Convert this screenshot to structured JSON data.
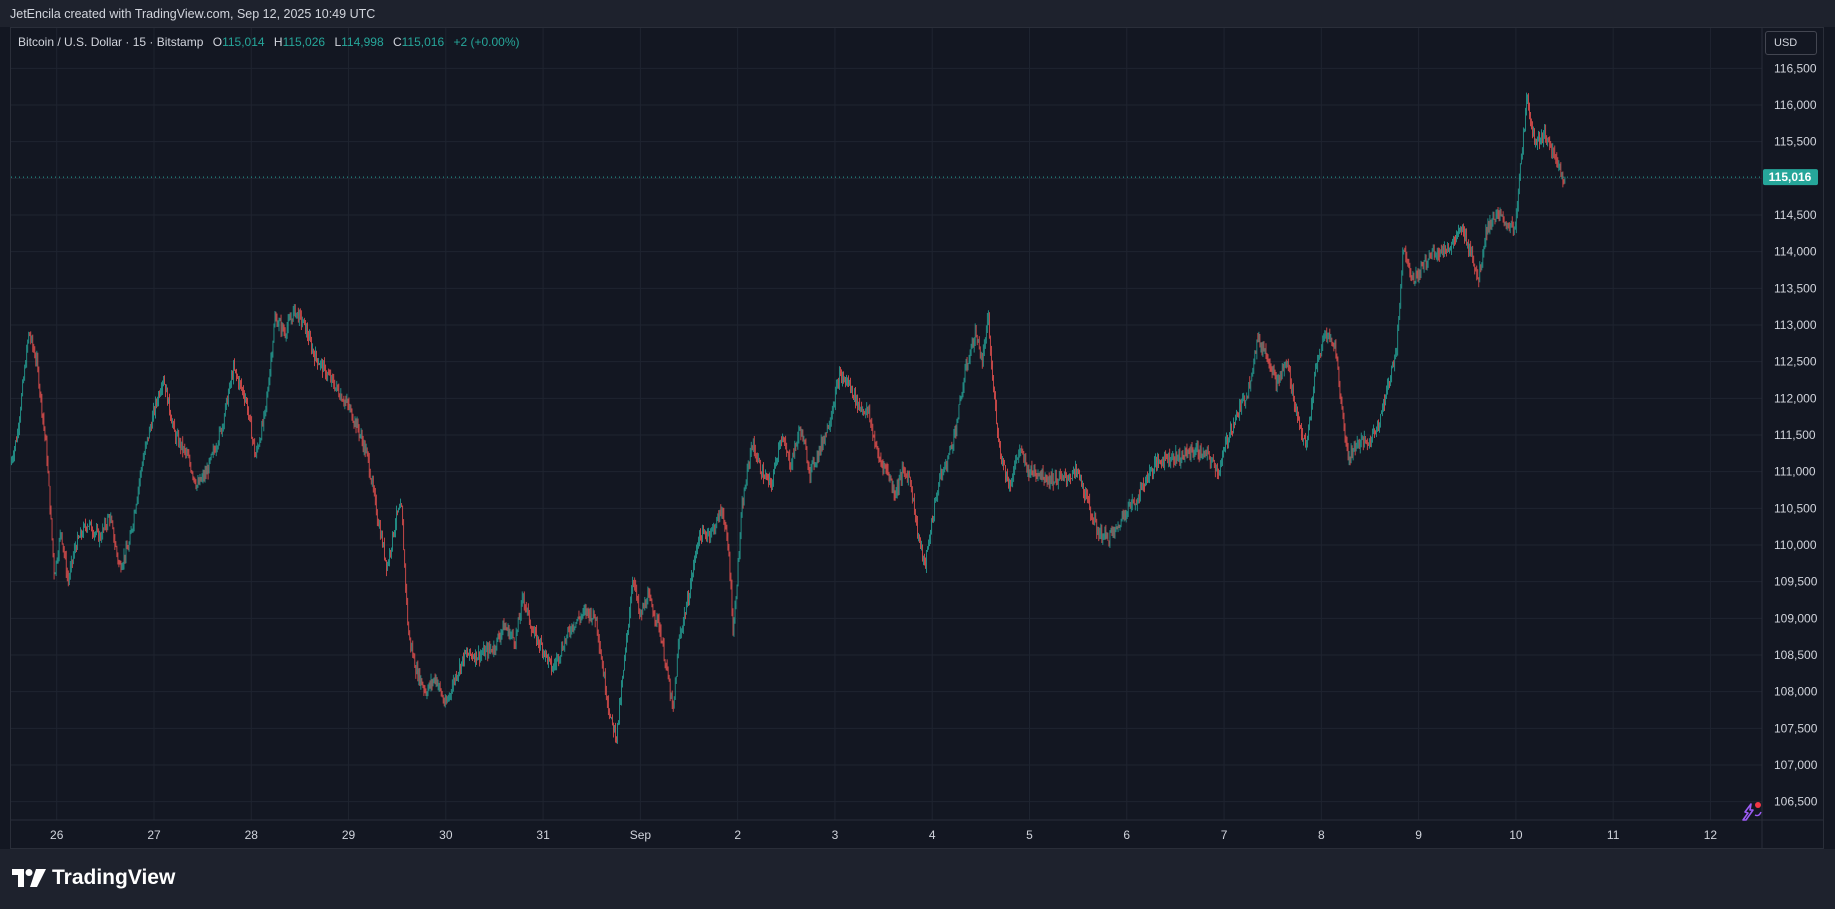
{
  "header": {
    "byline": "JetEncila created with TradingView.com, Sep 12, 2025 10:49 UTC"
  },
  "legend": {
    "symbol": "Bitcoin / U.S. Dollar · 15 · Bitstamp",
    "open_label": "O",
    "open": "115,014",
    "high_label": "H",
    "high": "115,026",
    "low_label": "L",
    "low": "114,998",
    "close_label": "C",
    "close": "115,016",
    "change": "+2 (+0.00%)"
  },
  "currency_button": "USD",
  "footer": {
    "brand": "TradingView"
  },
  "colors": {
    "background": "#131722",
    "grid": "#1f2430",
    "up": "#26a69a",
    "down": "#ef5350",
    "price_badge": "#26a69a"
  },
  "chart_data": {
    "type": "candlestick",
    "title": "Bitcoin / U.S. Dollar · 15 · Bitstamp",
    "interval": "15",
    "exchange": "Bitstamp",
    "ylim": [
      106250,
      117050
    ],
    "y_ticks": [
      106500,
      107000,
      107500,
      108000,
      108500,
      109000,
      109500,
      110000,
      110500,
      111000,
      111500,
      112000,
      112500,
      113000,
      113500,
      114000,
      114500,
      115000,
      115500,
      116000,
      116500
    ],
    "x_ticks": [
      "26",
      "27",
      "28",
      "29",
      "30",
      "31",
      "Sep",
      "2",
      "3",
      "4",
      "5",
      "6",
      "7",
      "8",
      "9",
      "10",
      "11",
      "12"
    ],
    "x_tick_days": [
      1,
      2,
      3,
      4,
      5,
      6,
      7,
      8,
      9,
      10,
      11,
      12,
      13,
      14,
      15,
      16,
      17,
      18
    ],
    "xlim_days": [
      0.53,
      18.53
    ],
    "last_price": 115016,
    "last_price_label": "115,016",
    "price_path": [
      [
        0.53,
        111100
      ],
      [
        0.6,
        111500
      ],
      [
        0.72,
        112900
      ],
      [
        0.8,
        112500
      ],
      [
        0.9,
        111300
      ],
      [
        0.98,
        109600
      ],
      [
        1.05,
        110200
      ],
      [
        1.12,
        109500
      ],
      [
        1.2,
        110000
      ],
      [
        1.32,
        110300
      ],
      [
        1.45,
        110100
      ],
      [
        1.55,
        110400
      ],
      [
        1.65,
        109700
      ],
      [
        1.75,
        110000
      ],
      [
        1.88,
        111100
      ],
      [
        2.0,
        111800
      ],
      [
        2.1,
        112300
      ],
      [
        2.22,
        111500
      ],
      [
        2.35,
        111200
      ],
      [
        2.45,
        110800
      ],
      [
        2.55,
        111000
      ],
      [
        2.7,
        111600
      ],
      [
        2.82,
        112400
      ],
      [
        2.95,
        112000
      ],
      [
        3.05,
        111200
      ],
      [
        3.15,
        111800
      ],
      [
        3.25,
        113100
      ],
      [
        3.35,
        112900
      ],
      [
        3.45,
        113200
      ],
      [
        3.55,
        113000
      ],
      [
        3.65,
        112600
      ],
      [
        3.8,
        112300
      ],
      [
        3.9,
        112100
      ],
      [
        4.0,
        111900
      ],
      [
        4.1,
        111600
      ],
      [
        4.2,
        111200
      ],
      [
        4.3,
        110400
      ],
      [
        4.4,
        109700
      ],
      [
        4.5,
        110400
      ],
      [
        4.55,
        110500
      ],
      [
        4.62,
        108800
      ],
      [
        4.7,
        108300
      ],
      [
        4.8,
        108000
      ],
      [
        4.9,
        108200
      ],
      [
        5.0,
        107800
      ],
      [
        5.1,
        108200
      ],
      [
        5.2,
        108500
      ],
      [
        5.35,
        108500
      ],
      [
        5.5,
        108600
      ],
      [
        5.6,
        108900
      ],
      [
        5.72,
        108700
      ],
      [
        5.8,
        109300
      ],
      [
        5.9,
        108800
      ],
      [
        6.0,
        108600
      ],
      [
        6.1,
        108300
      ],
      [
        6.2,
        108600
      ],
      [
        6.3,
        108900
      ],
      [
        6.45,
        109100
      ],
      [
        6.55,
        109000
      ],
      [
        6.62,
        108300
      ],
      [
        6.7,
        107600
      ],
      [
        6.76,
        107400
      ],
      [
        6.85,
        108500
      ],
      [
        6.93,
        109600
      ],
      [
        7.0,
        109000
      ],
      [
        7.08,
        109300
      ],
      [
        7.2,
        108900
      ],
      [
        7.3,
        108100
      ],
      [
        7.34,
        107700
      ],
      [
        7.4,
        108700
      ],
      [
        7.5,
        109300
      ],
      [
        7.6,
        110100
      ],
      [
        7.75,
        110200
      ],
      [
        7.85,
        110500
      ],
      [
        7.92,
        109800
      ],
      [
        7.96,
        108800
      ],
      [
        8.05,
        110500
      ],
      [
        8.15,
        111400
      ],
      [
        8.25,
        111000
      ],
      [
        8.35,
        110800
      ],
      [
        8.45,
        111500
      ],
      [
        8.55,
        111100
      ],
      [
        8.65,
        111600
      ],
      [
        8.75,
        111000
      ],
      [
        8.85,
        111300
      ],
      [
        8.95,
        111700
      ],
      [
        9.05,
        112300
      ],
      [
        9.15,
        112200
      ],
      [
        9.25,
        111900
      ],
      [
        9.35,
        111800
      ],
      [
        9.45,
        111200
      ],
      [
        9.55,
        111000
      ],
      [
        9.62,
        110700
      ],
      [
        9.7,
        111000
      ],
      [
        9.78,
        110900
      ],
      [
        9.85,
        110200
      ],
      [
        9.93,
        109700
      ],
      [
        10.0,
        110300
      ],
      [
        10.08,
        110900
      ],
      [
        10.15,
        111100
      ],
      [
        10.25,
        111600
      ],
      [
        10.35,
        112400
      ],
      [
        10.45,
        112900
      ],
      [
        10.52,
        112500
      ],
      [
        10.58,
        113100
      ],
      [
        10.62,
        112300
      ],
      [
        10.7,
        111300
      ],
      [
        10.8,
        110800
      ],
      [
        10.9,
        111300
      ],
      [
        11.0,
        111000
      ],
      [
        11.1,
        111000
      ],
      [
        11.2,
        110900
      ],
      [
        11.35,
        110900
      ],
      [
        11.5,
        111000
      ],
      [
        11.6,
        110600
      ],
      [
        11.7,
        110200
      ],
      [
        11.8,
        110100
      ],
      [
        11.9,
        110200
      ],
      [
        12.0,
        110500
      ],
      [
        12.1,
        110600
      ],
      [
        12.2,
        110900
      ],
      [
        12.3,
        111100
      ],
      [
        12.4,
        111200
      ],
      [
        12.55,
        111200
      ],
      [
        12.7,
        111300
      ],
      [
        12.85,
        111200
      ],
      [
        12.95,
        111000
      ],
      [
        13.05,
        111500
      ],
      [
        13.15,
        111800
      ],
      [
        13.25,
        112100
      ],
      [
        13.35,
        112800
      ],
      [
        13.45,
        112600
      ],
      [
        13.55,
        112200
      ],
      [
        13.65,
        112500
      ],
      [
        13.75,
        111800
      ],
      [
        13.85,
        111300
      ],
      [
        13.95,
        112400
      ],
      [
        14.05,
        112900
      ],
      [
        14.15,
        112700
      ],
      [
        14.22,
        111800
      ],
      [
        14.28,
        111200
      ],
      [
        14.38,
        111400
      ],
      [
        14.5,
        111400
      ],
      [
        14.6,
        111700
      ],
      [
        14.7,
        112200
      ],
      [
        14.78,
        112700
      ],
      [
        14.85,
        114100
      ],
      [
        14.95,
        113600
      ],
      [
        15.05,
        113800
      ],
      [
        15.15,
        114000
      ],
      [
        15.25,
        114000
      ],
      [
        15.35,
        114100
      ],
      [
        15.45,
        114300
      ],
      [
        15.55,
        114000
      ],
      [
        15.62,
        113600
      ],
      [
        15.7,
        114300
      ],
      [
        15.8,
        114500
      ],
      [
        15.9,
        114400
      ],
      [
        16.0,
        114300
      ],
      [
        16.06,
        115300
      ],
      [
        16.12,
        116100
      ],
      [
        16.2,
        115500
      ],
      [
        16.3,
        115600
      ],
      [
        16.4,
        115300
      ],
      [
        16.5,
        115000
      ]
    ]
  }
}
